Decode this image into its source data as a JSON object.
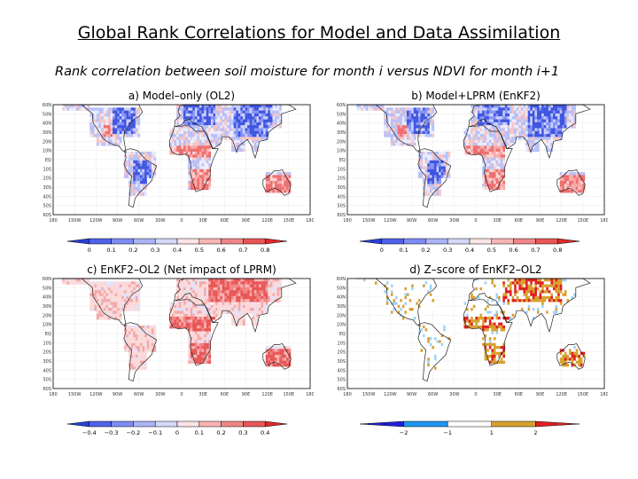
{
  "title": "Global Rank Correlations for Model and Data Assimilation",
  "subtitle": "Rank correlation between soil moisture for month i versus NDVI for month i+1",
  "panels": [
    {
      "label": "a) Model–only (OL2)",
      "theme": "blue-red"
    },
    {
      "label": "b) Model+LPRM (EnKF2)",
      "theme": "blue-red"
    },
    {
      "label": "c) EnKF2–OL2 (Net impact of LPRM)",
      "theme": "diff"
    },
    {
      "label": "d) Z–score of EnKF2–OL2",
      "theme": "zscore"
    }
  ],
  "lat_ticks": [
    "60N",
    "50N",
    "40N",
    "30N",
    "20N",
    "10N",
    "EQ",
    "10S",
    "20S",
    "30S",
    "40S",
    "50S",
    "60S"
  ],
  "lon_ticks": [
    "180",
    "150W",
    "120W",
    "90W",
    "60W",
    "30W",
    "0",
    "30E",
    "60E",
    "90E",
    "120E",
    "150E",
    "180"
  ],
  "colorbars": [
    {
      "ticks": [
        "0",
        "0.1",
        "0.2",
        "0.3",
        "0.4",
        "0.5",
        "0.6",
        "0.7",
        "0.8"
      ],
      "colors": [
        "#2a3fd9",
        "#4f62ea",
        "#7c8cf2",
        "#a9b3f6",
        "#d4d9fb",
        "#fde3e3",
        "#f8b4b4",
        "#f08585",
        "#e85656",
        "#df2a2a"
      ]
    },
    {
      "ticks": [
        "0",
        "0.1",
        "0.2",
        "0.3",
        "0.4",
        "0.5",
        "0.6",
        "0.7",
        "0.8"
      ],
      "colors": [
        "#2a3fd9",
        "#4f62ea",
        "#7c8cf2",
        "#a9b3f6",
        "#d4d9fb",
        "#fde3e3",
        "#f8b4b4",
        "#f08585",
        "#e85656",
        "#df2a2a"
      ]
    },
    {
      "ticks": [
        "−0.4",
        "−0.3",
        "−0.2",
        "−0.1",
        "0",
        "0.1",
        "0.2",
        "0.3",
        "0.4"
      ],
      "colors": [
        "#2a3fd9",
        "#4f62ea",
        "#7c8cf2",
        "#a9b3f6",
        "#d4d9fb",
        "#fde3e3",
        "#f8b4b4",
        "#f08585",
        "#e85656",
        "#df2a2a"
      ]
    },
    {
      "ticks": [
        "−2",
        "−1",
        "1",
        "2"
      ],
      "colors": [
        "#2020d8",
        "#1e96f0",
        "#ffffff",
        "#d8a030",
        "#e02020"
      ]
    }
  ]
}
